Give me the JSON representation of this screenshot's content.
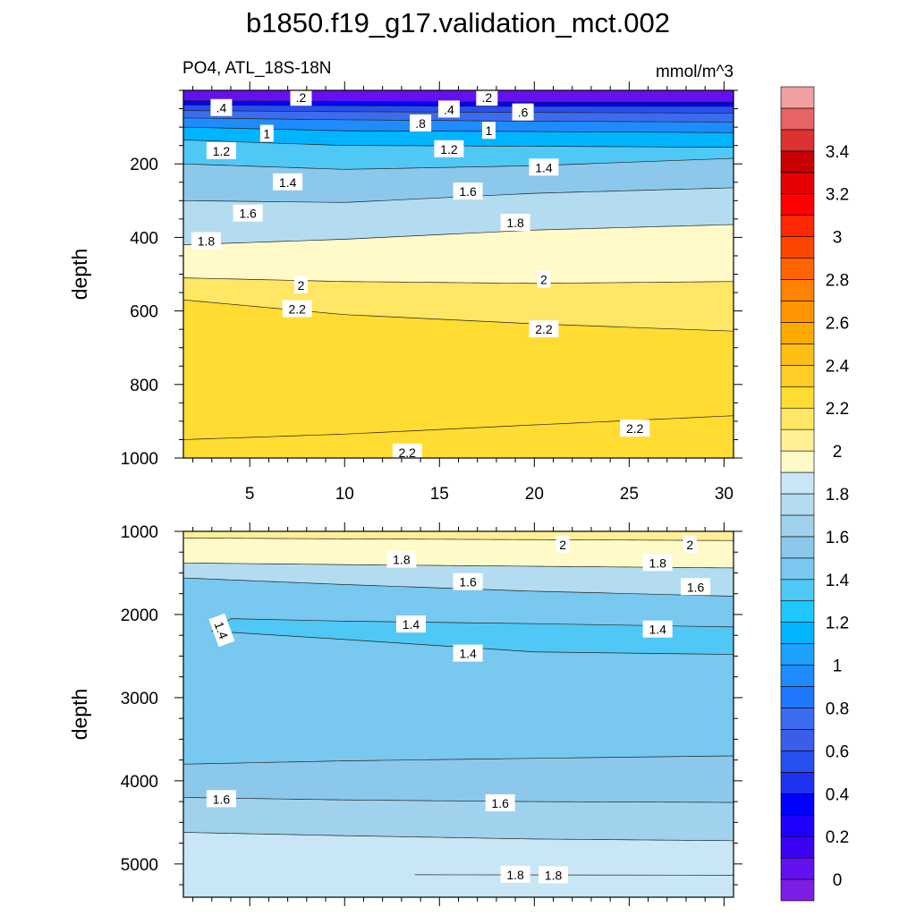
{
  "chart_data": {
    "type": "heatmap",
    "title": "b1850.f19_g17.validation_mct.002",
    "variable_label": "PO4, ATL_18S-18N",
    "units_label": "mmol/m^3",
    "xlim": [
      1.5,
      30.5
    ],
    "x_ticks": [
      5,
      10,
      15,
      20,
      25,
      30
    ],
    "panels": [
      {
        "name": "upper",
        "ylabel": "depth",
        "ylim": [
          0,
          1000
        ],
        "y_ticks": [
          200,
          400,
          600,
          800,
          1000
        ],
        "contours": [
          {
            "value": 0.2,
            "points": [
              [
                1.5,
                28
              ],
              [
                10,
                30
              ],
              [
                20,
                32
              ],
              [
                30.5,
                32
              ]
            ]
          },
          {
            "value": 0.4,
            "points": [
              [
                1.5,
                40
              ],
              [
                10,
                42
              ],
              [
                20,
                44
              ],
              [
                30.5,
                44
              ]
            ]
          },
          {
            "value": 0.6,
            "points": [
              [
                1.5,
                55
              ],
              [
                10,
                58
              ],
              [
                20,
                60
              ],
              [
                30.5,
                62
              ]
            ]
          },
          {
            "value": 0.8,
            "points": [
              [
                1.5,
                75
              ],
              [
                10,
                80
              ],
              [
                20,
                84
              ],
              [
                30.5,
                86
              ]
            ]
          },
          {
            "value": 1.0,
            "points": [
              [
                1.5,
                100
              ],
              [
                10,
                110
              ],
              [
                20,
                112
              ],
              [
                30.5,
                115
              ]
            ]
          },
          {
            "value": 1.2,
            "points": [
              [
                1.5,
                135
              ],
              [
                10,
                150
              ],
              [
                20,
                152
              ],
              [
                30.5,
                155
              ]
            ]
          },
          {
            "value": 1.4,
            "points": [
              [
                1.5,
                200
              ],
              [
                10,
                215
              ],
              [
                20,
                205
              ],
              [
                30.5,
                185
              ]
            ]
          },
          {
            "value": 1.6,
            "points": [
              [
                1.5,
                300
              ],
              [
                10,
                305
              ],
              [
                20,
                280
              ],
              [
                30.5,
                265
              ]
            ]
          },
          {
            "value": 1.8,
            "points": [
              [
                1.5,
                420
              ],
              [
                10,
                405
              ],
              [
                20,
                380
              ],
              [
                30.5,
                365
              ]
            ]
          },
          {
            "value": 2.0,
            "points": [
              [
                1.5,
                510
              ],
              [
                10,
                520
              ],
              [
                20,
                525
              ],
              [
                30.5,
                520
              ]
            ]
          },
          {
            "value": 2.2,
            "points": [
              [
                1.5,
                570
              ],
              [
                10,
                610
              ],
              [
                20,
                635
              ],
              [
                30.5,
                655
              ]
            ]
          },
          {
            "value": 2.2,
            "points": [
              [
                1.5,
                950
              ],
              [
                10,
                935
              ],
              [
                20,
                910
              ],
              [
                30.5,
                885
              ]
            ]
          }
        ],
        "contour_labels": [
          {
            "text": ".2",
            "x": 7.7,
            "y": 20
          },
          {
            "text": ".2",
            "x": 17.5,
            "y": 20
          },
          {
            "text": ".4",
            "x": 3.5,
            "y": 48
          },
          {
            "text": ".4",
            "x": 15.5,
            "y": 52
          },
          {
            "text": ".6",
            "x": 19.4,
            "y": 60
          },
          {
            "text": ".8",
            "x": 14.0,
            "y": 90
          },
          {
            "text": "1",
            "x": 5.9,
            "y": 118
          },
          {
            "text": "1",
            "x": 17.6,
            "y": 110
          },
          {
            "text": "1.2",
            "x": 3.5,
            "y": 165
          },
          {
            "text": "1.2",
            "x": 15.5,
            "y": 160
          },
          {
            "text": "1.4",
            "x": 7.0,
            "y": 250
          },
          {
            "text": "1.4",
            "x": 20.5,
            "y": 210
          },
          {
            "text": "1.6",
            "x": 4.9,
            "y": 335
          },
          {
            "text": "1.6",
            "x": 16.5,
            "y": 275
          },
          {
            "text": "1.8",
            "x": 2.7,
            "y": 410
          },
          {
            "text": "1.8",
            "x": 19.0,
            "y": 360
          },
          {
            "text": "2",
            "x": 7.7,
            "y": 530
          },
          {
            "text": "2",
            "x": 20.5,
            "y": 515
          },
          {
            "text": "2.2",
            "x": 7.5,
            "y": 595
          },
          {
            "text": "2.2",
            "x": 20.5,
            "y": 650
          },
          {
            "text": "2.2",
            "x": 13.3,
            "y": 985
          },
          {
            "text": "2.2",
            "x": 25.3,
            "y": 920
          }
        ]
      },
      {
        "name": "lower",
        "ylabel": "depth",
        "ylim": [
          1000,
          5400
        ],
        "y_ticks": [
          1000,
          2000,
          3000,
          4000,
          5000
        ],
        "contours": [
          {
            "value": 2.0,
            "points": [
              [
                1.5,
                1080
              ],
              [
                10,
                1090
              ],
              [
                20,
                1100
              ],
              [
                30.5,
                1110
              ]
            ]
          },
          {
            "value": 1.8,
            "points": [
              [
                1.5,
                1380
              ],
              [
                10,
                1400
              ],
              [
                20,
                1420
              ],
              [
                30.5,
                1440
              ]
            ]
          },
          {
            "value": 1.6,
            "points": [
              [
                1.5,
                1560
              ],
              [
                10,
                1640
              ],
              [
                20,
                1720
              ],
              [
                30.5,
                1780
              ]
            ]
          },
          {
            "value": 1.4,
            "points": [
              [
                3.0,
                2200
              ],
              [
                10,
                2300
              ],
              [
                20,
                2450
              ],
              [
                30.5,
                2480
              ]
            ],
            "closed_top": [
              [
                3.0,
                2200
              ],
              [
                4.0,
                2050
              ],
              [
                10,
                2080
              ],
              [
                20,
                2110
              ],
              [
                30.5,
                2150
              ]
            ]
          },
          {
            "value": 1.4,
            "points": [
              [
                1.5,
                3800
              ],
              [
                10,
                3760
              ],
              [
                20,
                3730
              ],
              [
                30.5,
                3700
              ]
            ]
          },
          {
            "value": 1.6,
            "points": [
              [
                1.5,
                4200
              ],
              [
                10,
                4230
              ],
              [
                20,
                4250
              ],
              [
                30.5,
                4260
              ]
            ]
          },
          {
            "value": 1.8,
            "points": [
              [
                1.5,
                4620
              ],
              [
                10,
                4660
              ],
              [
                20,
                4700
              ],
              [
                30.5,
                4720
              ]
            ]
          },
          {
            "value": 1.8,
            "points": [
              [
                13.7,
                5130
              ],
              [
                30.5,
                5135
              ]
            ]
          }
        ],
        "contour_labels": [
          {
            "text": "2",
            "x": 21.5,
            "y": 1160
          },
          {
            "text": "2",
            "x": 28.2,
            "y": 1160
          },
          {
            "text": "1.8",
            "x": 13.0,
            "y": 1340
          },
          {
            "text": "1.8",
            "x": 26.5,
            "y": 1380
          },
          {
            "text": "1.6",
            "x": 16.5,
            "y": 1610
          },
          {
            "text": "1.6",
            "x": 28.5,
            "y": 1670
          },
          {
            "text": "1.4",
            "x": 3.5,
            "y": 2190,
            "rotate": 70
          },
          {
            "text": "1.4",
            "x": 13.5,
            "y": 2120
          },
          {
            "text": "1.4",
            "x": 26.5,
            "y": 2180
          },
          {
            "text": "1.4",
            "x": 16.5,
            "y": 2470
          },
          {
            "text": "1.6",
            "x": 3.5,
            "y": 4220
          },
          {
            "text": "1.6",
            "x": 18.2,
            "y": 4270
          },
          {
            "text": "1.8",
            "x": 19.0,
            "y": 5130
          },
          {
            "text": "1.8",
            "x": 21.0,
            "y": 5135
          }
        ]
      }
    ],
    "colorbar": {
      "levels": [
        -0.1,
        0,
        0.1,
        0.2,
        0.3,
        0.4,
        0.5,
        0.6,
        0.7,
        0.8,
        0.9,
        1.0,
        1.1,
        1.2,
        1.3,
        1.4,
        1.5,
        1.6,
        1.7,
        1.8,
        1.9,
        2.0,
        2.1,
        2.2,
        2.3,
        2.4,
        2.5,
        2.6,
        2.7,
        2.8,
        2.9,
        3.0,
        3.1,
        3.2,
        3.3,
        3.4,
        3.5,
        3.6
      ],
      "tick_labels": [
        "0",
        "0.2",
        "0.4",
        "0.6",
        "0.8",
        "1",
        "1.2",
        "1.4",
        "1.6",
        "1.8",
        "2",
        "2.2",
        "2.4",
        "2.6",
        "2.8",
        "3",
        "3.2",
        "3.4"
      ],
      "tick_values": [
        0,
        0.2,
        0.4,
        0.6,
        0.8,
        1.0,
        1.2,
        1.4,
        1.6,
        1.8,
        2.0,
        2.2,
        2.4,
        2.6,
        2.8,
        3.0,
        3.2,
        3.4
      ],
      "colors": [
        "#7d1ee6",
        "#6311f0",
        "#3c00f5",
        "#1e00ff",
        "#0000ff",
        "#1e32f0",
        "#2850f0",
        "#3a5ee8",
        "#3c6cee",
        "#1e78ff",
        "#1e8cff",
        "#1ea0ff",
        "#00b4ff",
        "#1ec8ff",
        "#50c8f5",
        "#78c8f0",
        "#8cc8ec",
        "#a0d2ee",
        "#b4dcf0",
        "#c8e6f5",
        "#fffac8",
        "#fff096",
        "#ffe664",
        "#ffdc32",
        "#ffcd28",
        "#ffbe14",
        "#ffaa00",
        "#ff9600",
        "#ff8200",
        "#ff6400",
        "#ff4600",
        "#ff2800",
        "#ff0000",
        "#e60000",
        "#c80000",
        "#dc3232",
        "#e66464",
        "#f0a0a0"
      ]
    }
  }
}
